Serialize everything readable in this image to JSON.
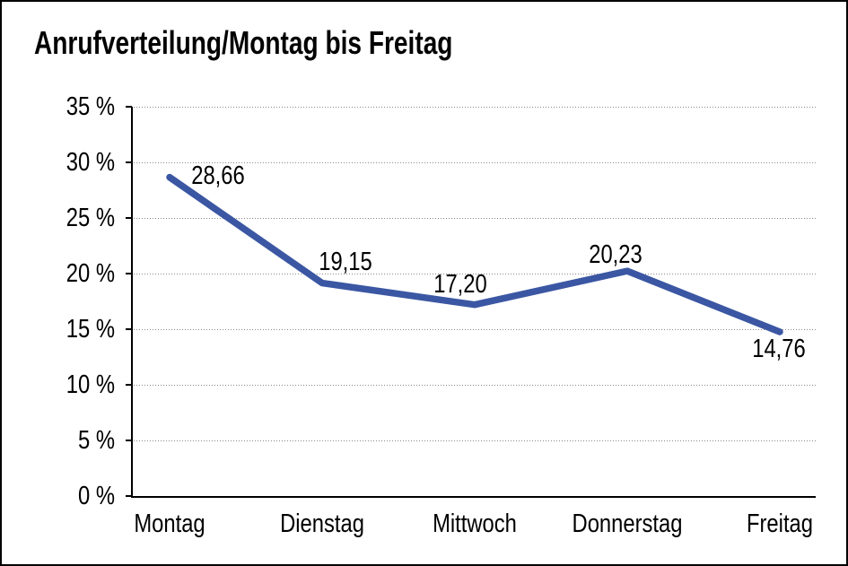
{
  "title": "Anrufverteilung/Montag bis Freitag",
  "chart_data": {
    "type": "line",
    "title": "Anrufverteilung/Montag bis Freitag",
    "categories": [
      "Montag",
      "Dienstag",
      "Mittwoch",
      "Donnerstag",
      "Freitag"
    ],
    "values": [
      28.66,
      19.15,
      17.2,
      20.23,
      14.76
    ],
    "value_labels": [
      "28,66",
      "19,15",
      "17,20",
      "20,23",
      "14,76"
    ],
    "series": [
      {
        "name": "Anrufverteilung",
        "values": [
          28.66,
          19.15,
          17.2,
          20.23,
          14.76
        ]
      }
    ],
    "xlabel": "",
    "ylabel": "",
    "ylim": [
      0,
      35
    ],
    "y_tick_step": 5,
    "y_ticks": [
      "0 %",
      "5 %",
      "10 %",
      "15 %",
      "20 %",
      "25 %",
      "30 %",
      "35 %"
    ],
    "grid": "horizontal-dotted",
    "legend": "none",
    "colors": {
      "line": "#3b57a3",
      "grid": "#8a8a8a",
      "axis": "#000000",
      "text": "#000000",
      "background": "#ffffff",
      "frame_border": "#000000"
    }
  }
}
